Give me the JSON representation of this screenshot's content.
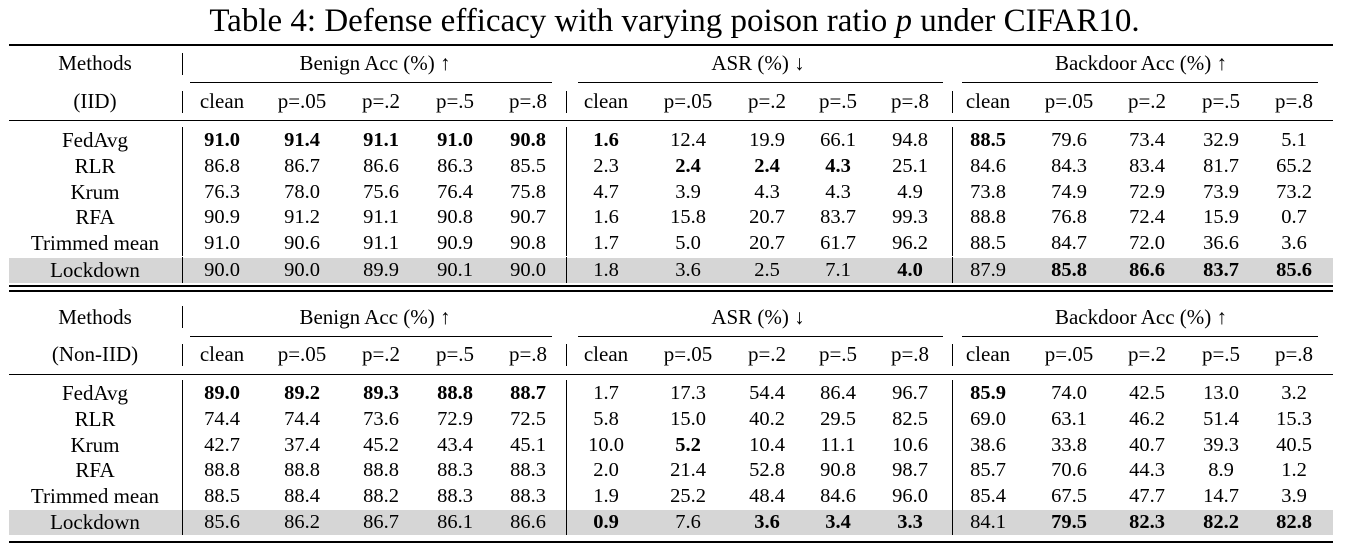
{
  "caption": {
    "prefix": "Table 4: Defense efficacy with varying poison ratio",
    "var": "p",
    "suffix": "under CIFAR10."
  },
  "column_groups": [
    "Benign Acc (%) ↑",
    "ASR (%) ↓",
    "Backdoor Acc (%) ↑"
  ],
  "ratio_columns": [
    "clean",
    "p=.05",
    "p=.2",
    "p=.5",
    "p=.8"
  ],
  "methods_label": "Methods",
  "sections": [
    {
      "setting": "(IID)",
      "rows": [
        {
          "method": "FedAvg",
          "values": [
            "91.0",
            "91.4",
            "91.1",
            "91.0",
            "90.8",
            "1.6",
            "12.4",
            "19.9",
            "66.1",
            "94.8",
            "88.5",
            "79.6",
            "73.4",
            "32.9",
            "5.1"
          ],
          "bold": [
            0,
            1,
            2,
            3,
            4,
            5,
            10
          ],
          "highlight": false
        },
        {
          "method": "RLR",
          "values": [
            "86.8",
            "86.7",
            "86.6",
            "86.3",
            "85.5",
            "2.3",
            "2.4",
            "2.4",
            "4.3",
            "25.1",
            "84.6",
            "84.3",
            "83.4",
            "81.7",
            "65.2"
          ],
          "bold": [
            6,
            7,
            8
          ],
          "highlight": false
        },
        {
          "method": "Krum",
          "values": [
            "76.3",
            "78.0",
            "75.6",
            "76.4",
            "75.8",
            "4.7",
            "3.9",
            "4.3",
            "4.3",
            "4.9",
            "73.8",
            "74.9",
            "72.9",
            "73.9",
            "73.2"
          ],
          "bold": [],
          "highlight": false
        },
        {
          "method": "RFA",
          "values": [
            "90.9",
            "91.2",
            "91.1",
            "90.8",
            "90.7",
            "1.6",
            "15.8",
            "20.7",
            "83.7",
            "99.3",
            "88.8",
            "76.8",
            "72.4",
            "15.9",
            "0.7"
          ],
          "bold": [],
          "highlight": false
        },
        {
          "method": "Trimmed mean",
          "values": [
            "91.0",
            "90.6",
            "91.1",
            "90.9",
            "90.8",
            "1.7",
            "5.0",
            "20.7",
            "61.7",
            "96.2",
            "88.5",
            "84.7",
            "72.0",
            "36.6",
            "3.6"
          ],
          "bold": [],
          "highlight": false
        },
        {
          "method": "Lockdown",
          "values": [
            "90.0",
            "90.0",
            "89.9",
            "90.1",
            "90.0",
            "1.8",
            "3.6",
            "2.5",
            "7.1",
            "4.0",
            "87.9",
            "85.8",
            "86.6",
            "83.7",
            "85.6"
          ],
          "bold": [
            9,
            11,
            12,
            13,
            14
          ],
          "highlight": true
        }
      ]
    },
    {
      "setting": "(Non-IID)",
      "rows": [
        {
          "method": "FedAvg",
          "values": [
            "89.0",
            "89.2",
            "89.3",
            "88.8",
            "88.7",
            "1.7",
            "17.3",
            "54.4",
            "86.4",
            "96.7",
            "85.9",
            "74.0",
            "42.5",
            "13.0",
            "3.2"
          ],
          "bold": [
            0,
            1,
            2,
            3,
            4,
            10
          ],
          "highlight": false
        },
        {
          "method": "RLR",
          "values": [
            "74.4",
            "74.4",
            "73.6",
            "72.9",
            "72.5",
            "5.8",
            "15.0",
            "40.2",
            "29.5",
            "82.5",
            "69.0",
            "63.1",
            "46.2",
            "51.4",
            "15.3"
          ],
          "bold": [],
          "highlight": false
        },
        {
          "method": "Krum",
          "values": [
            "42.7",
            "37.4",
            "45.2",
            "43.4",
            "45.1",
            "10.0",
            "5.2",
            "10.4",
            "11.1",
            "10.6",
            "38.6",
            "33.8",
            "40.7",
            "39.3",
            "40.5"
          ],
          "bold": [
            6
          ],
          "highlight": false
        },
        {
          "method": "RFA",
          "values": [
            "88.8",
            "88.8",
            "88.8",
            "88.3",
            "88.3",
            "2.0",
            "21.4",
            "52.8",
            "90.8",
            "98.7",
            "85.7",
            "70.6",
            "44.3",
            "8.9",
            "1.2"
          ],
          "bold": [],
          "highlight": false
        },
        {
          "method": "Trimmed mean",
          "values": [
            "88.5",
            "88.4",
            "88.2",
            "88.3",
            "88.3",
            "1.9",
            "25.2",
            "48.4",
            "84.6",
            "96.0",
            "85.4",
            "67.5",
            "47.7",
            "14.7",
            "3.9"
          ],
          "bold": [],
          "highlight": false
        },
        {
          "method": "Lockdown",
          "values": [
            "85.6",
            "86.2",
            "86.7",
            "86.1",
            "86.6",
            "0.9",
            "7.6",
            "3.6",
            "3.4",
            "3.3",
            "84.1",
            "79.5",
            "82.3",
            "82.2",
            "82.8"
          ],
          "bold": [
            5,
            7,
            8,
            9,
            11,
            12,
            13,
            14
          ],
          "highlight": true
        }
      ]
    }
  ]
}
